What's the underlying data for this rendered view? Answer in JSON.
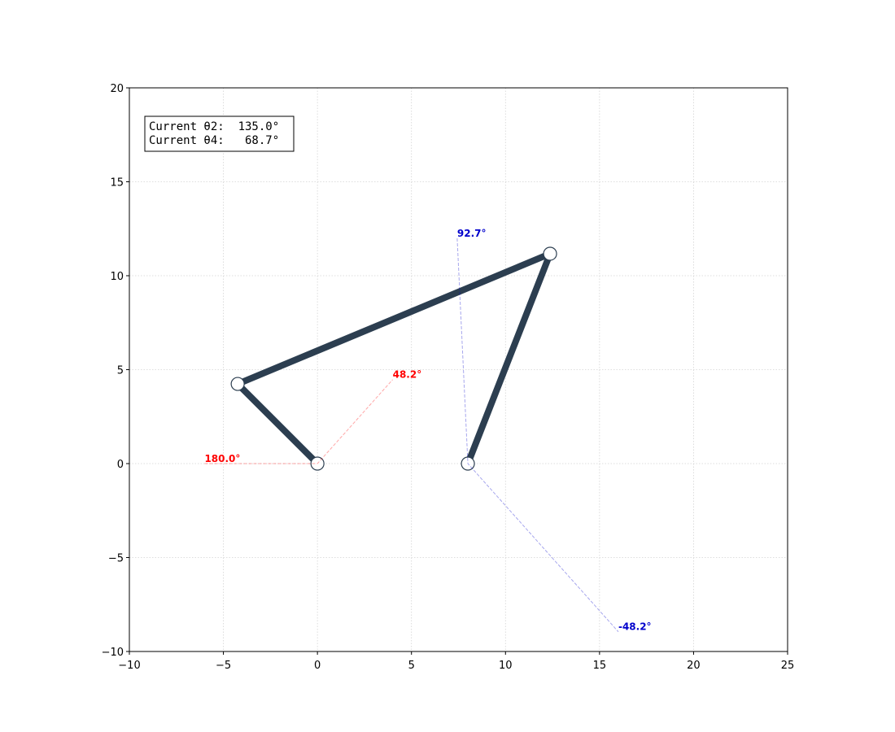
{
  "chart_data": {
    "type": "line",
    "xlim": [
      -10,
      25
    ],
    "ylim": [
      -10,
      20
    ],
    "xticks": [
      {
        "value": -10,
        "label": "−10"
      },
      {
        "value": -5,
        "label": "−5"
      },
      0,
      5,
      10,
      15,
      20,
      25
    ],
    "yticks": [
      {
        "value": -10,
        "label": "−10"
      },
      {
        "value": -5,
        "label": "−5"
      },
      0,
      5,
      10,
      15,
      20
    ],
    "grid": true,
    "text_box": [
      "Current θ2:  135.0°",
      "Current θ4:   68.7°"
    ],
    "series": [
      {
        "color": "#2c3e50",
        "linestyle": "solid",
        "markers": true,
        "x": [
          0,
          -4.24,
          12.37,
          8
        ],
        "y": [
          0,
          4.24,
          11.17,
          0
        ]
      },
      {
        "color": "#ff0000",
        "linestyle": "dashed",
        "x": [
          -6,
          0,
          4.0
        ],
        "y": [
          0,
          0,
          4.47
        ],
        "labels": [
          "180.0°",
          null,
          "48.2°"
        ]
      },
      {
        "color": "#0000cc",
        "linestyle": "dashed",
        "x": [
          7.43,
          8,
          16.0
        ],
        "y": [
          11.99,
          0,
          -8.95
        ],
        "labels": [
          "92.7°",
          null,
          "-48.2°"
        ]
      }
    ]
  }
}
